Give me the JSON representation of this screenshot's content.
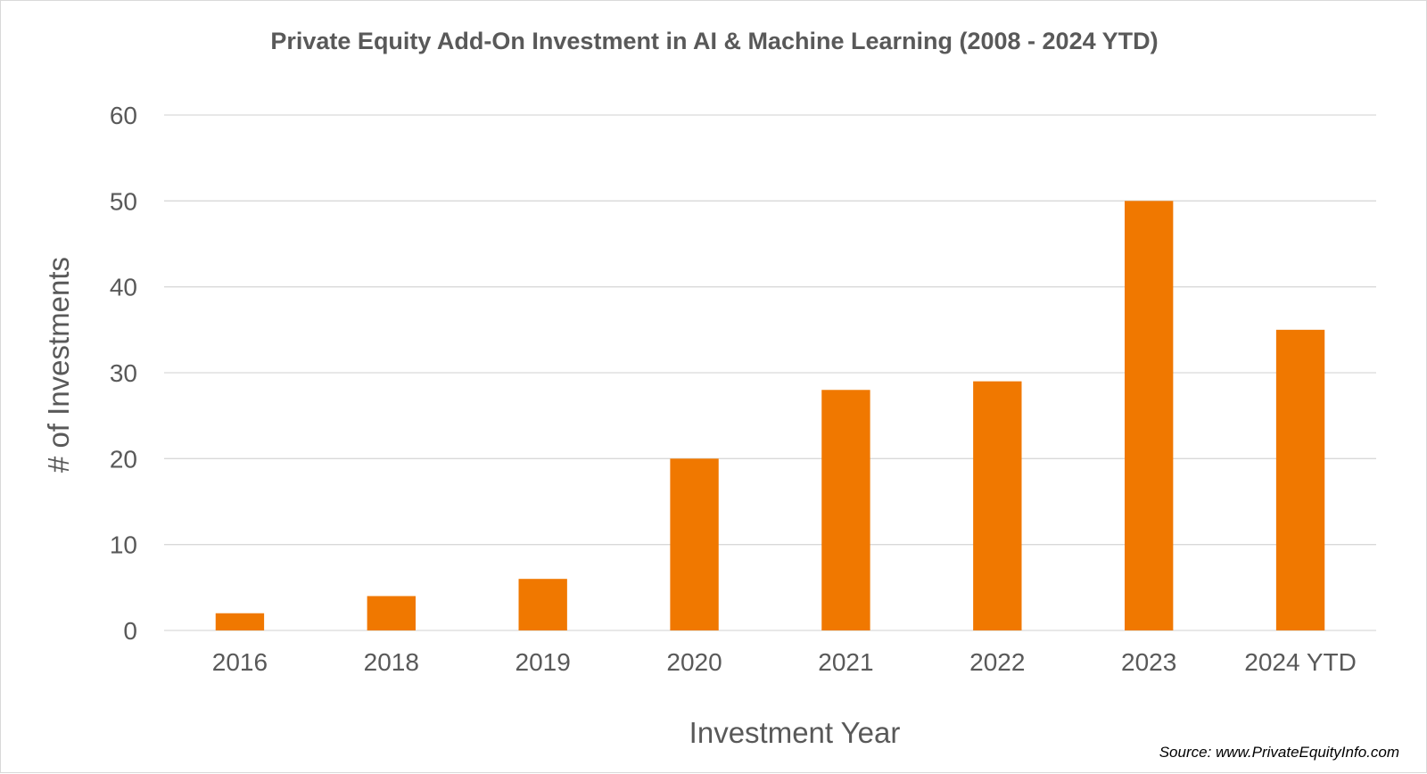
{
  "chart_data": {
    "type": "bar",
    "title": "Private Equity Add-On Investment in AI & Machine Learning (2008 - 2024 YTD)",
    "xlabel": "Investment Year",
    "ylabel": "# of Investments",
    "categories": [
      "2016",
      "2018",
      "2019",
      "2020",
      "2021",
      "2022",
      "2023",
      "2024 YTD"
    ],
    "values": [
      2,
      4,
      6,
      20,
      28,
      29,
      50,
      35
    ],
    "ylim": [
      0,
      60
    ],
    "yticks": [
      0,
      10,
      20,
      30,
      40,
      50,
      60
    ],
    "grid": true,
    "bar_color": "#F07800",
    "gridline_color": "#d9d9d9",
    "source": "Source: www.PrivateEquityInfo.com"
  }
}
